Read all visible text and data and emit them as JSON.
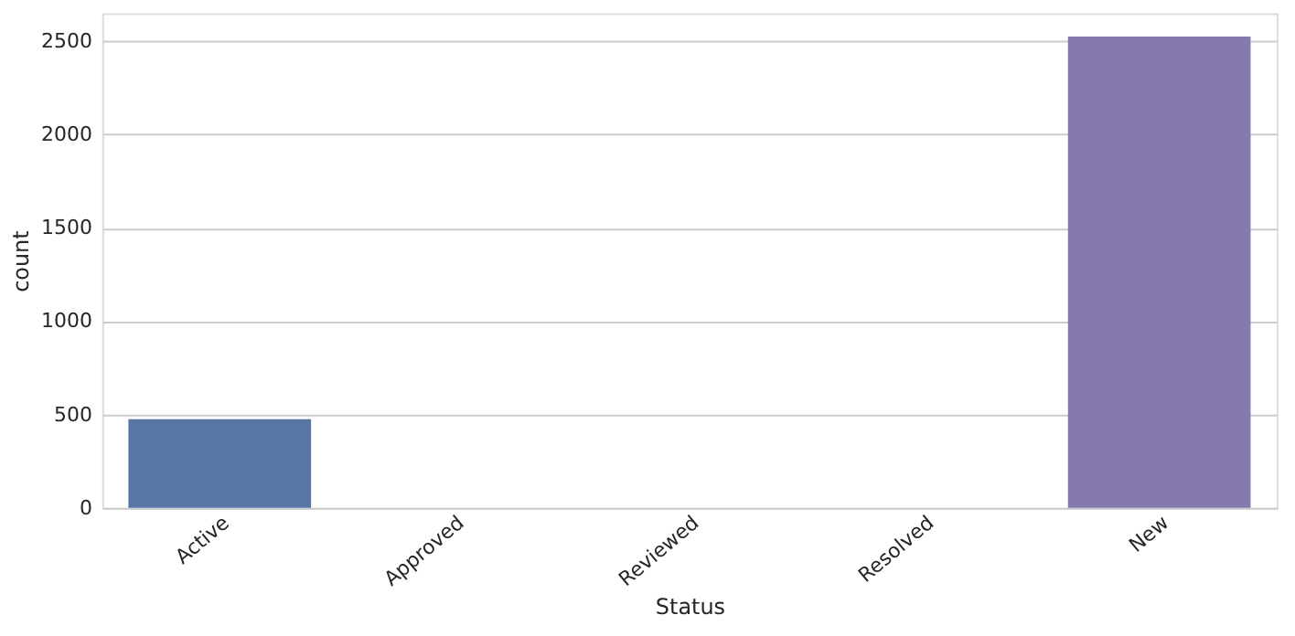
{
  "chart_data": {
    "type": "bar",
    "categories": [
      "Active",
      "Approved",
      "Reviewed",
      "Resolved",
      "New"
    ],
    "values": [
      475,
      0,
      0,
      0,
      2525
    ],
    "colors": [
      "#5975a4",
      "#cc8963",
      "#5f9e6e",
      "#b55d60",
      "#857aab"
    ],
    "xlabel": "Status",
    "ylabel": "count",
    "ylim": [
      0,
      2650
    ],
    "yticks": [
      0,
      500,
      1000,
      1500,
      2000,
      2500
    ],
    "grid": "y",
    "legend": false
  }
}
